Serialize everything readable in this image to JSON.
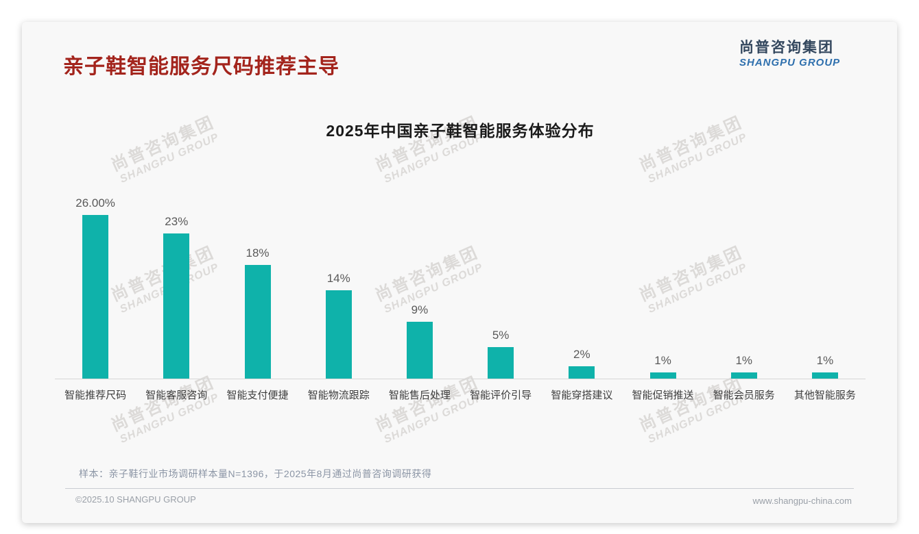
{
  "page": {
    "title": "亲子鞋智能服务尺码推荐主导",
    "logo": {
      "cn": "尚普咨询集团",
      "en": "SHANGPU GROUP"
    },
    "watermark": {
      "line1": "尚普咨询集团",
      "line2": "SHANGPU GROUP"
    },
    "footnote": "样本：亲子鞋行业市场调研样本量N=1396，于2025年8月通过尚普咨询调研获得",
    "footer": {
      "left": "©2025.10 SHANGPU GROUP",
      "right": "www.shangpu-china.com"
    }
  },
  "colors": {
    "title_red": "#a3241c",
    "bar_teal": "#0fb2aa",
    "logo_navy": "#33475e",
    "logo_blue": "#2e6fad"
  },
  "chart_data": {
    "type": "bar",
    "title": "2025年中国亲子鞋智能服务体验分布",
    "categories": [
      "智能推荐尺码",
      "智能客服咨询",
      "智能支付便捷",
      "智能物流跟踪",
      "智能售后处理",
      "智能评价引导",
      "智能穿搭建议",
      "智能促销推送",
      "智能会员服务",
      "其他智能服务"
    ],
    "values": [
      26,
      23,
      18,
      14,
      9,
      5,
      2,
      1,
      1,
      1
    ],
    "value_labels": [
      "26.00%",
      "23%",
      "18%",
      "14%",
      "9%",
      "5%",
      "2%",
      "1%",
      "1%",
      "1%"
    ],
    "xlabel": "",
    "ylabel": "",
    "ylim": [
      0,
      30
    ],
    "grid": false,
    "legend": "none",
    "bar_color": "#0fb2aa"
  }
}
